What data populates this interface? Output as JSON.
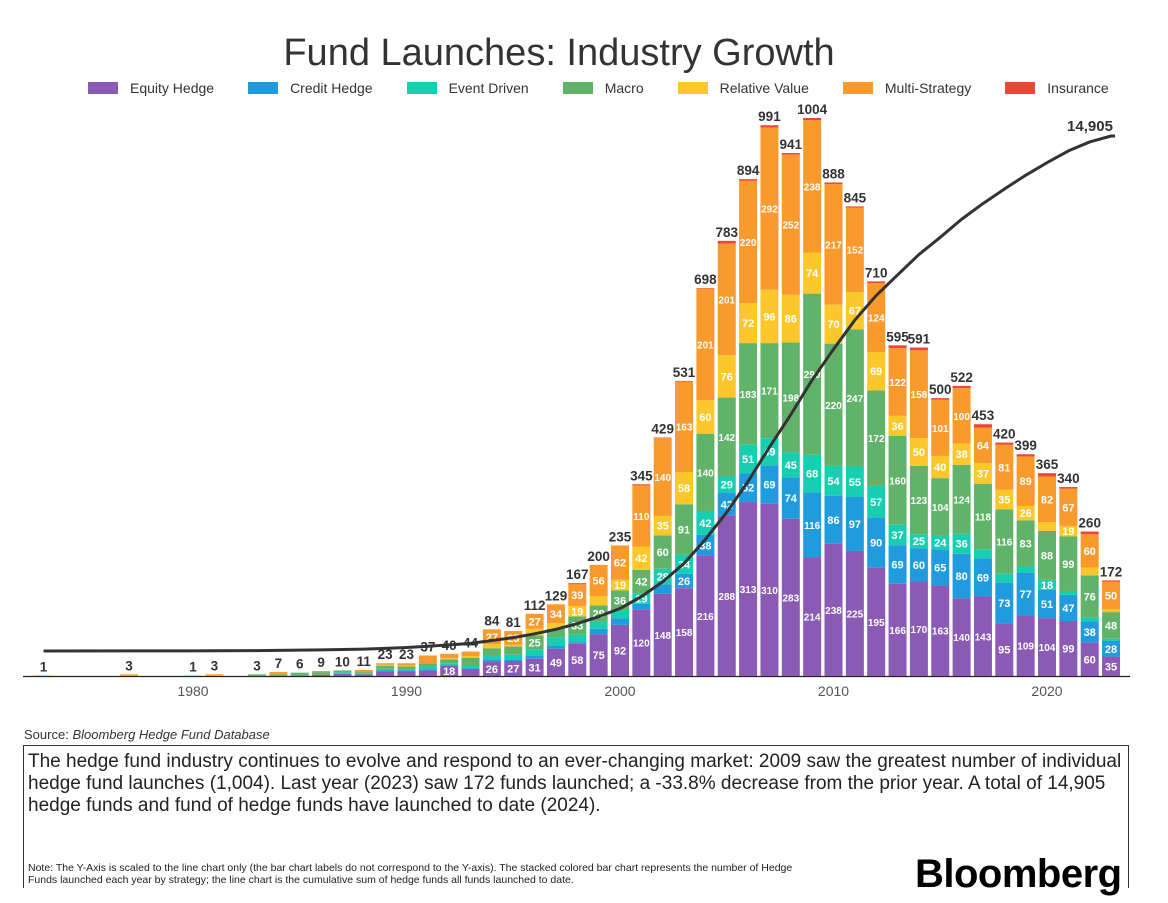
{
  "chart_data": {
    "type": "bar",
    "stacked": true,
    "title": "Fund Launches: Industry Growth",
    "xlabel": "",
    "ylabel": "",
    "x_ticks": [
      "1980",
      "1990",
      "2000",
      "2010",
      "2020"
    ],
    "legend_position": "top",
    "years": [
      1973,
      1977,
      1980,
      1981,
      1983,
      1984,
      1985,
      1986,
      1987,
      1988,
      1989,
      1990,
      1991,
      1992,
      1993,
      1994,
      1995,
      1996,
      1997,
      1998,
      1999,
      2000,
      2001,
      2002,
      2003,
      2004,
      2005,
      2006,
      2007,
      2008,
      2009,
      2010,
      2011,
      2012,
      2013,
      2014,
      2015,
      2016,
      2017,
      2018,
      2019,
      2020,
      2021,
      2022,
      2023
    ],
    "totals": [
      1,
      3,
      1,
      3,
      3,
      7,
      6,
      9,
      10,
      11,
      23,
      23,
      37,
      40,
      44,
      84,
      81,
      112,
      129,
      167,
      200,
      235,
      345,
      429,
      531,
      698,
      783,
      894,
      991,
      941,
      1004,
      888,
      845,
      710,
      595,
      591,
      500,
      522,
      453,
      420,
      399,
      365,
      340,
      260,
      172
    ],
    "series": [
      {
        "name": "Equity Hedge",
        "color": "#8a5ab5",
        "values": [
          0,
          0,
          0,
          0,
          0,
          0,
          1,
          2,
          4,
          3,
          8,
          8,
          10,
          18,
          13,
          26,
          27,
          31,
          49,
          58,
          75,
          92,
          120,
          148,
          158,
          216,
          288,
          313,
          310,
          283,
          214,
          238,
          225,
          195,
          166,
          170,
          163,
          140,
          143,
          95,
          109,
          104,
          99,
          60,
          35
        ]
      },
      {
        "name": "Credit Hedge",
        "color": "#1f9bde",
        "values": [
          0,
          0,
          0,
          0,
          0,
          0,
          0,
          0,
          0,
          0,
          2,
          2,
          2,
          1,
          2,
          4,
          3,
          5,
          5,
          3,
          10,
          12,
          10,
          17,
          26,
          38,
          42,
          52,
          69,
          74,
          116,
          86,
          97,
          90,
          69,
          60,
          65,
          80,
          69,
          73,
          77,
          51,
          47,
          38,
          28
        ]
      },
      {
        "name": "Event Driven",
        "color": "#17cfb0",
        "values": [
          0,
          0,
          0,
          0,
          0,
          0,
          1,
          0,
          3,
          1,
          3,
          2,
          5,
          4,
          3,
          6,
          8,
          12,
          16,
          13,
          13,
          14,
          19,
          28,
          34,
          42,
          29,
          51,
          49,
          45,
          68,
          54,
          55,
          57,
          37,
          25,
          24,
          36,
          16,
          16,
          11,
          18,
          6,
          7,
          4
        ]
      },
      {
        "name": "Macro",
        "color": "#62b36a",
        "values": [
          0,
          0,
          0,
          0,
          3,
          3,
          4,
          5,
          3,
          3,
          5,
          5,
          6,
          7,
          15,
          14,
          15,
          25,
          15,
          33,
          29,
          36,
          42,
          60,
          91,
          140,
          142,
          183,
          171,
          198,
          290,
          220,
          247,
          172,
          160,
          123,
          104,
          124,
          118,
          116,
          83,
          88,
          99,
          76,
          48
        ]
      },
      {
        "name": "Relative Value",
        "color": "#fcc72a",
        "values": [
          0,
          0,
          0,
          0,
          0,
          0,
          0,
          0,
          0,
          0,
          2,
          2,
          0,
          2,
          3,
          7,
          3,
          12,
          10,
          19,
          17,
          19,
          42,
          35,
          58,
          60,
          76,
          72,
          96,
          86,
          74,
          70,
          67,
          69,
          36,
          50,
          40,
          38,
          37,
          35,
          26,
          16,
          19,
          14,
          5
        ]
      },
      {
        "name": "Multi-Strategy",
        "color": "#fb9a2c",
        "values": [
          1,
          3,
          1,
          3,
          0,
          4,
          0,
          2,
          0,
          4,
          3,
          4,
          14,
          8,
          8,
          27,
          25,
          27,
          34,
          39,
          56,
          62,
          110,
          140,
          163,
          201,
          201,
          220,
          292,
          252,
          238,
          217,
          152,
          124,
          122,
          158,
          101,
          100,
          64,
          81,
          89,
          82,
          67,
          60,
          50
        ]
      },
      {
        "name": "Insurance",
        "color": "#e8483a",
        "values": [
          0,
          0,
          0,
          0,
          0,
          0,
          0,
          0,
          0,
          0,
          0,
          0,
          0,
          0,
          0,
          0,
          0,
          0,
          0,
          2,
          0,
          0,
          2,
          1,
          1,
          1,
          5,
          3,
          4,
          3,
          4,
          3,
          2,
          3,
          5,
          5,
          3,
          4,
          6,
          4,
          4,
          6,
          3,
          5,
          2
        ]
      }
    ],
    "line": {
      "name": "Cumulative launches",
      "final_value": 14905,
      "final_label": "14,905",
      "color": "#333333"
    }
  },
  "source": {
    "label": "Source:",
    "value": "Bloomberg Hedge Fund Database"
  },
  "summary": "The hedge fund industry continues to evolve and respond to an ever-changing market: 2009 saw the greatest number of individual hedge fund launches (1,004). Last year (2023) saw 172 funds launched; a -33.8% decrease from the prior year. A total of 14,905 hedge funds and fund of hedge funds have launched to date (2024).",
  "note": "Note: The Y-Axis is scaled to the line chart only (the bar chart labels do not correspond to the Y-axis). The stacked colored bar chart represents the number of Hedge Funds launched each year by strategy; the line chart is the cumulative sum of hedge funds all funds launched to date.",
  "logo": "Bloomberg"
}
